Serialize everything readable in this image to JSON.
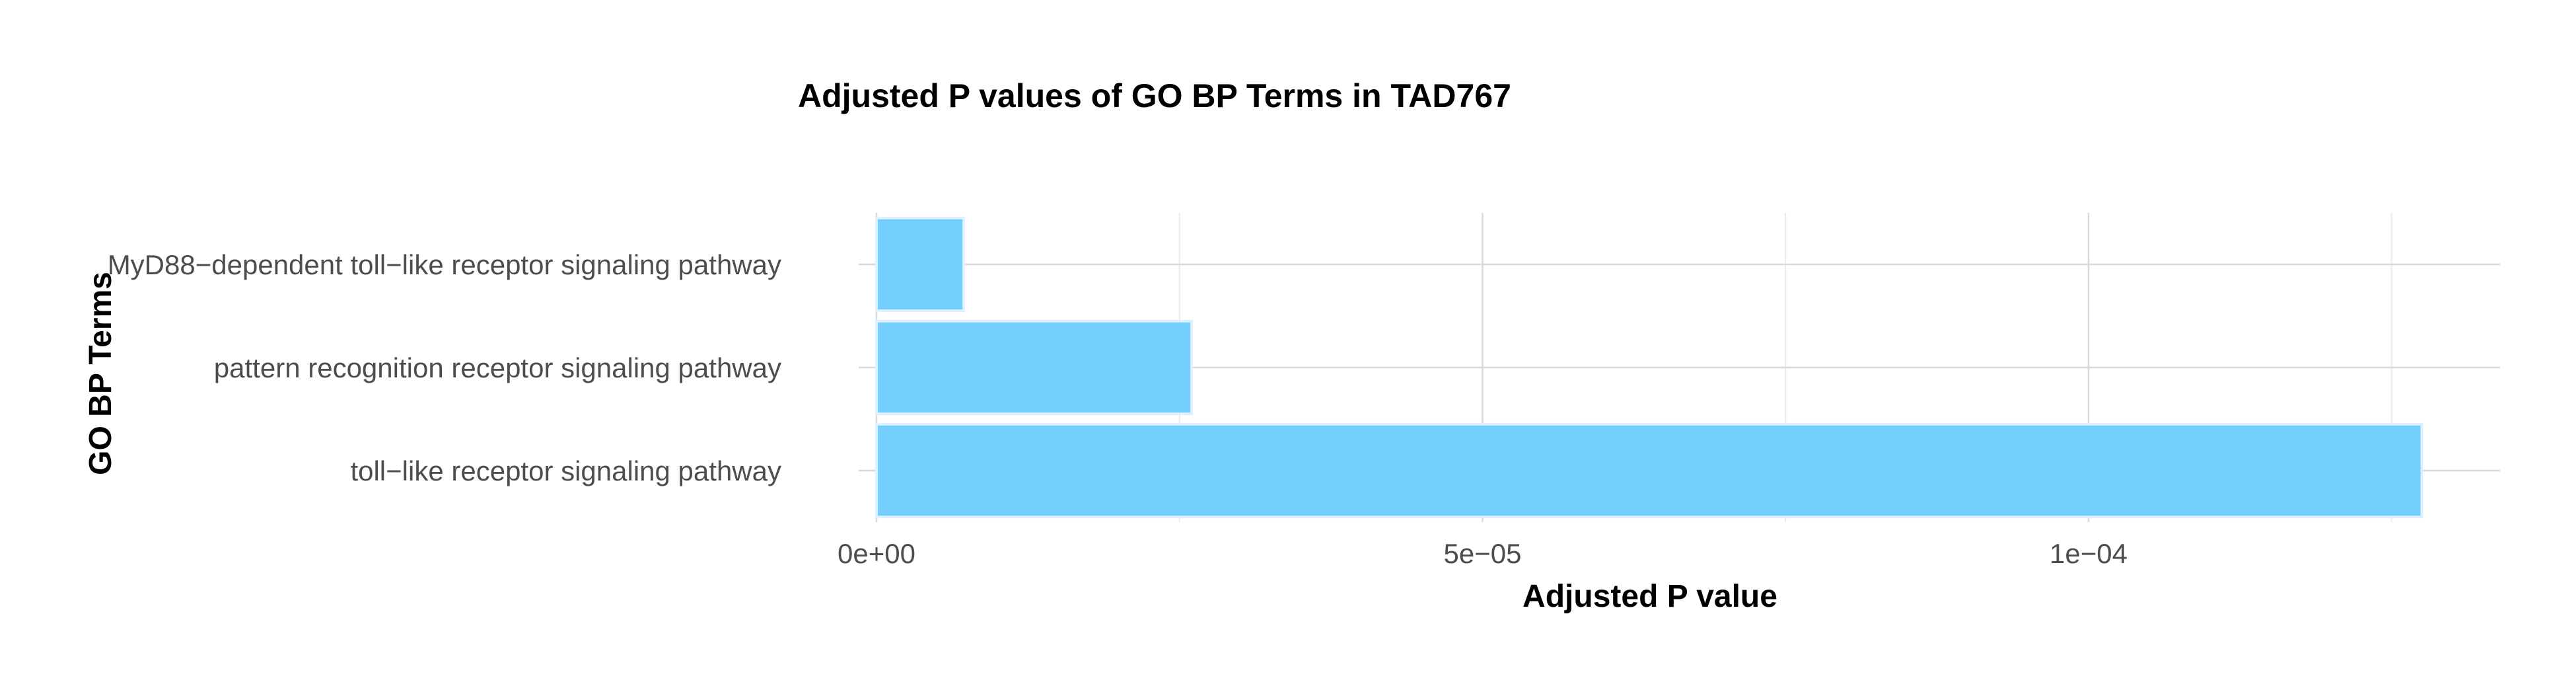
{
  "chart_data": {
    "type": "bar",
    "orientation": "horizontal",
    "title": "Adjusted P values of GO BP Terms in TAD767",
    "xlabel": "Adjusted P value",
    "ylabel": "GO BP Terms",
    "categories": [
      "MyD88−dependent toll−like receptor signaling pathway",
      "pattern recognition receptor signaling pathway",
      "toll−like receptor signaling pathway"
    ],
    "values": [
      7.2e-06,
      2.6e-05,
      0.0001275
    ],
    "xlim": [
      0,
      0.000134
    ],
    "x_ticks": [
      0,
      5e-05,
      0.0001
    ],
    "x_tick_labels": [
      "0e+00",
      "5e−05",
      "1e−04"
    ],
    "grid": true,
    "legend": "none",
    "bar_color": "#75cffc"
  }
}
